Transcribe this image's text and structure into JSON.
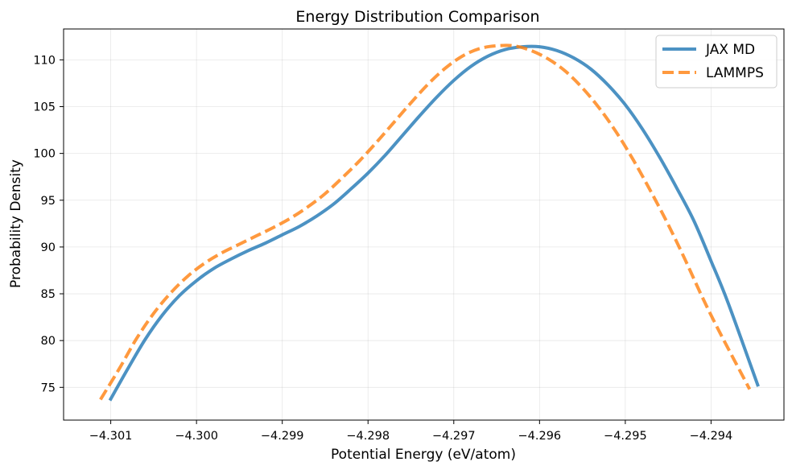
{
  "chart_data": {
    "type": "line",
    "title": "Energy Distribution Comparison",
    "xlabel": "Potential Energy (eV/atom)",
    "ylabel": "Probability Density",
    "xlim": [
      -4.30155,
      -4.29315
    ],
    "ylim": [
      71.5,
      113.3
    ],
    "xticks": [
      -4.301,
      -4.3,
      -4.299,
      -4.298,
      -4.297,
      -4.296,
      -4.295,
      -4.294
    ],
    "xtick_labels": [
      "−4.301",
      "−4.300",
      "−4.299",
      "−4.298",
      "−4.297",
      "−4.296",
      "−4.295",
      "−4.294"
    ],
    "yticks": [
      75,
      80,
      85,
      90,
      95,
      100,
      105,
      110
    ],
    "ytick_labels": [
      "75",
      "80",
      "85",
      "90",
      "95",
      "100",
      "105",
      "110"
    ],
    "grid": true,
    "legend_position": "top-right",
    "series": [
      {
        "name": "JAX MD",
        "color": "#1f77b4",
        "style": "solid",
        "x": [
          -4.30101,
          -4.3008,
          -4.3006,
          -4.3004,
          -4.3002,
          -4.3,
          -4.2998,
          -4.2996,
          -4.2994,
          -4.2992,
          -4.299,
          -4.2988,
          -4.2986,
          -4.2984,
          -4.2982,
          -4.298,
          -4.2978,
          -4.2976,
          -4.2974,
          -4.2972,
          -4.297,
          -4.2968,
          -4.2966,
          -4.2964,
          -4.2962,
          -4.296,
          -4.2958,
          -4.2956,
          -4.2954,
          -4.2952,
          -4.295,
          -4.2948,
          -4.2946,
          -4.2944,
          -4.2942,
          -4.294,
          -4.2938,
          -4.29345
        ],
        "y": [
          73.6,
          77.0,
          80.1,
          82.7,
          84.8,
          86.4,
          87.7,
          88.7,
          89.6,
          90.4,
          91.3,
          92.2,
          93.3,
          94.6,
          96.2,
          97.9,
          99.8,
          101.9,
          104.0,
          106.0,
          107.8,
          109.3,
          110.4,
          111.1,
          111.4,
          111.4,
          111.0,
          110.2,
          109.0,
          107.3,
          105.2,
          102.6,
          99.6,
          96.3,
          92.8,
          88.5,
          84.0,
          75.1
        ]
      },
      {
        "name": "LAMMPS",
        "color": "#ff7f0e",
        "style": "dashed",
        "x": [
          -4.30112,
          -4.3009,
          -4.3007,
          -4.3005,
          -4.3003,
          -4.3001,
          -4.2999,
          -4.2997,
          -4.2995,
          -4.2993,
          -4.2991,
          -4.2989,
          -4.2987,
          -4.2985,
          -4.2983,
          -4.2981,
          -4.2979,
          -4.2977,
          -4.2975,
          -4.2973,
          -4.2971,
          -4.2969,
          -4.2967,
          -4.2965,
          -4.2963,
          -4.2961,
          -4.2959,
          -4.2957,
          -4.2955,
          -4.2953,
          -4.2951,
          -4.2949,
          -4.2947,
          -4.2945,
          -4.2943,
          -4.2941,
          -4.2939,
          -4.29355
        ],
        "y": [
          73.7,
          77.0,
          80.2,
          82.9,
          85.1,
          86.9,
          88.3,
          89.4,
          90.3,
          91.2,
          92.1,
          93.1,
          94.3,
          95.7,
          97.4,
          99.2,
          101.2,
          103.3,
          105.4,
          107.4,
          109.1,
          110.4,
          111.2,
          111.5,
          111.5,
          111.0,
          110.1,
          108.8,
          107.0,
          104.8,
          102.2,
          99.2,
          95.9,
          92.4,
          88.6,
          84.6,
          80.9,
          74.8
        ]
      }
    ]
  }
}
